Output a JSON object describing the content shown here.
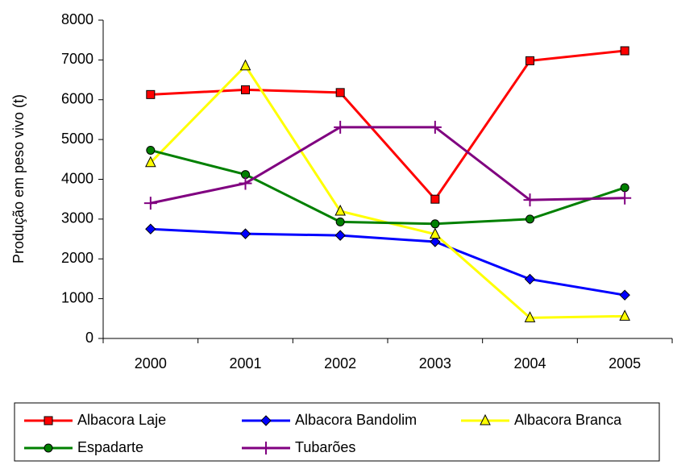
{
  "chart_data": {
    "type": "line",
    "y_label": "Produção em peso vivo (t)",
    "categories": [
      "2000",
      "2001",
      "2002",
      "2003",
      "2004",
      "2005"
    ],
    "series": [
      {
        "name": "Albacora Laje",
        "color": "#ff0000",
        "marker": "square",
        "values": [
          6130,
          6250,
          6180,
          3500,
          6980,
          7230
        ]
      },
      {
        "name": "Albacora Bandolim",
        "color": "#0000ff",
        "marker": "diamond",
        "values": [
          2750,
          2630,
          2590,
          2430,
          1490,
          1090
        ]
      },
      {
        "name": "Albacora Branca",
        "color": "#ffff00",
        "marker": "triangle",
        "values": [
          4420,
          6850,
          3200,
          2620,
          520,
          560
        ]
      },
      {
        "name": "Espadarte",
        "color": "#008000",
        "marker": "circle",
        "values": [
          4730,
          4120,
          2930,
          2880,
          3000,
          3790
        ]
      },
      {
        "name": "Tubarões",
        "color": "#800080",
        "marker": "plus",
        "values": [
          3400,
          3900,
          5310,
          5310,
          3480,
          3530
        ]
      }
    ],
    "ylim": [
      0,
      8000
    ],
    "yticks": [
      0,
      1000,
      2000,
      3000,
      4000,
      5000,
      6000,
      7000,
      8000
    ],
    "legend": "bottom"
  }
}
